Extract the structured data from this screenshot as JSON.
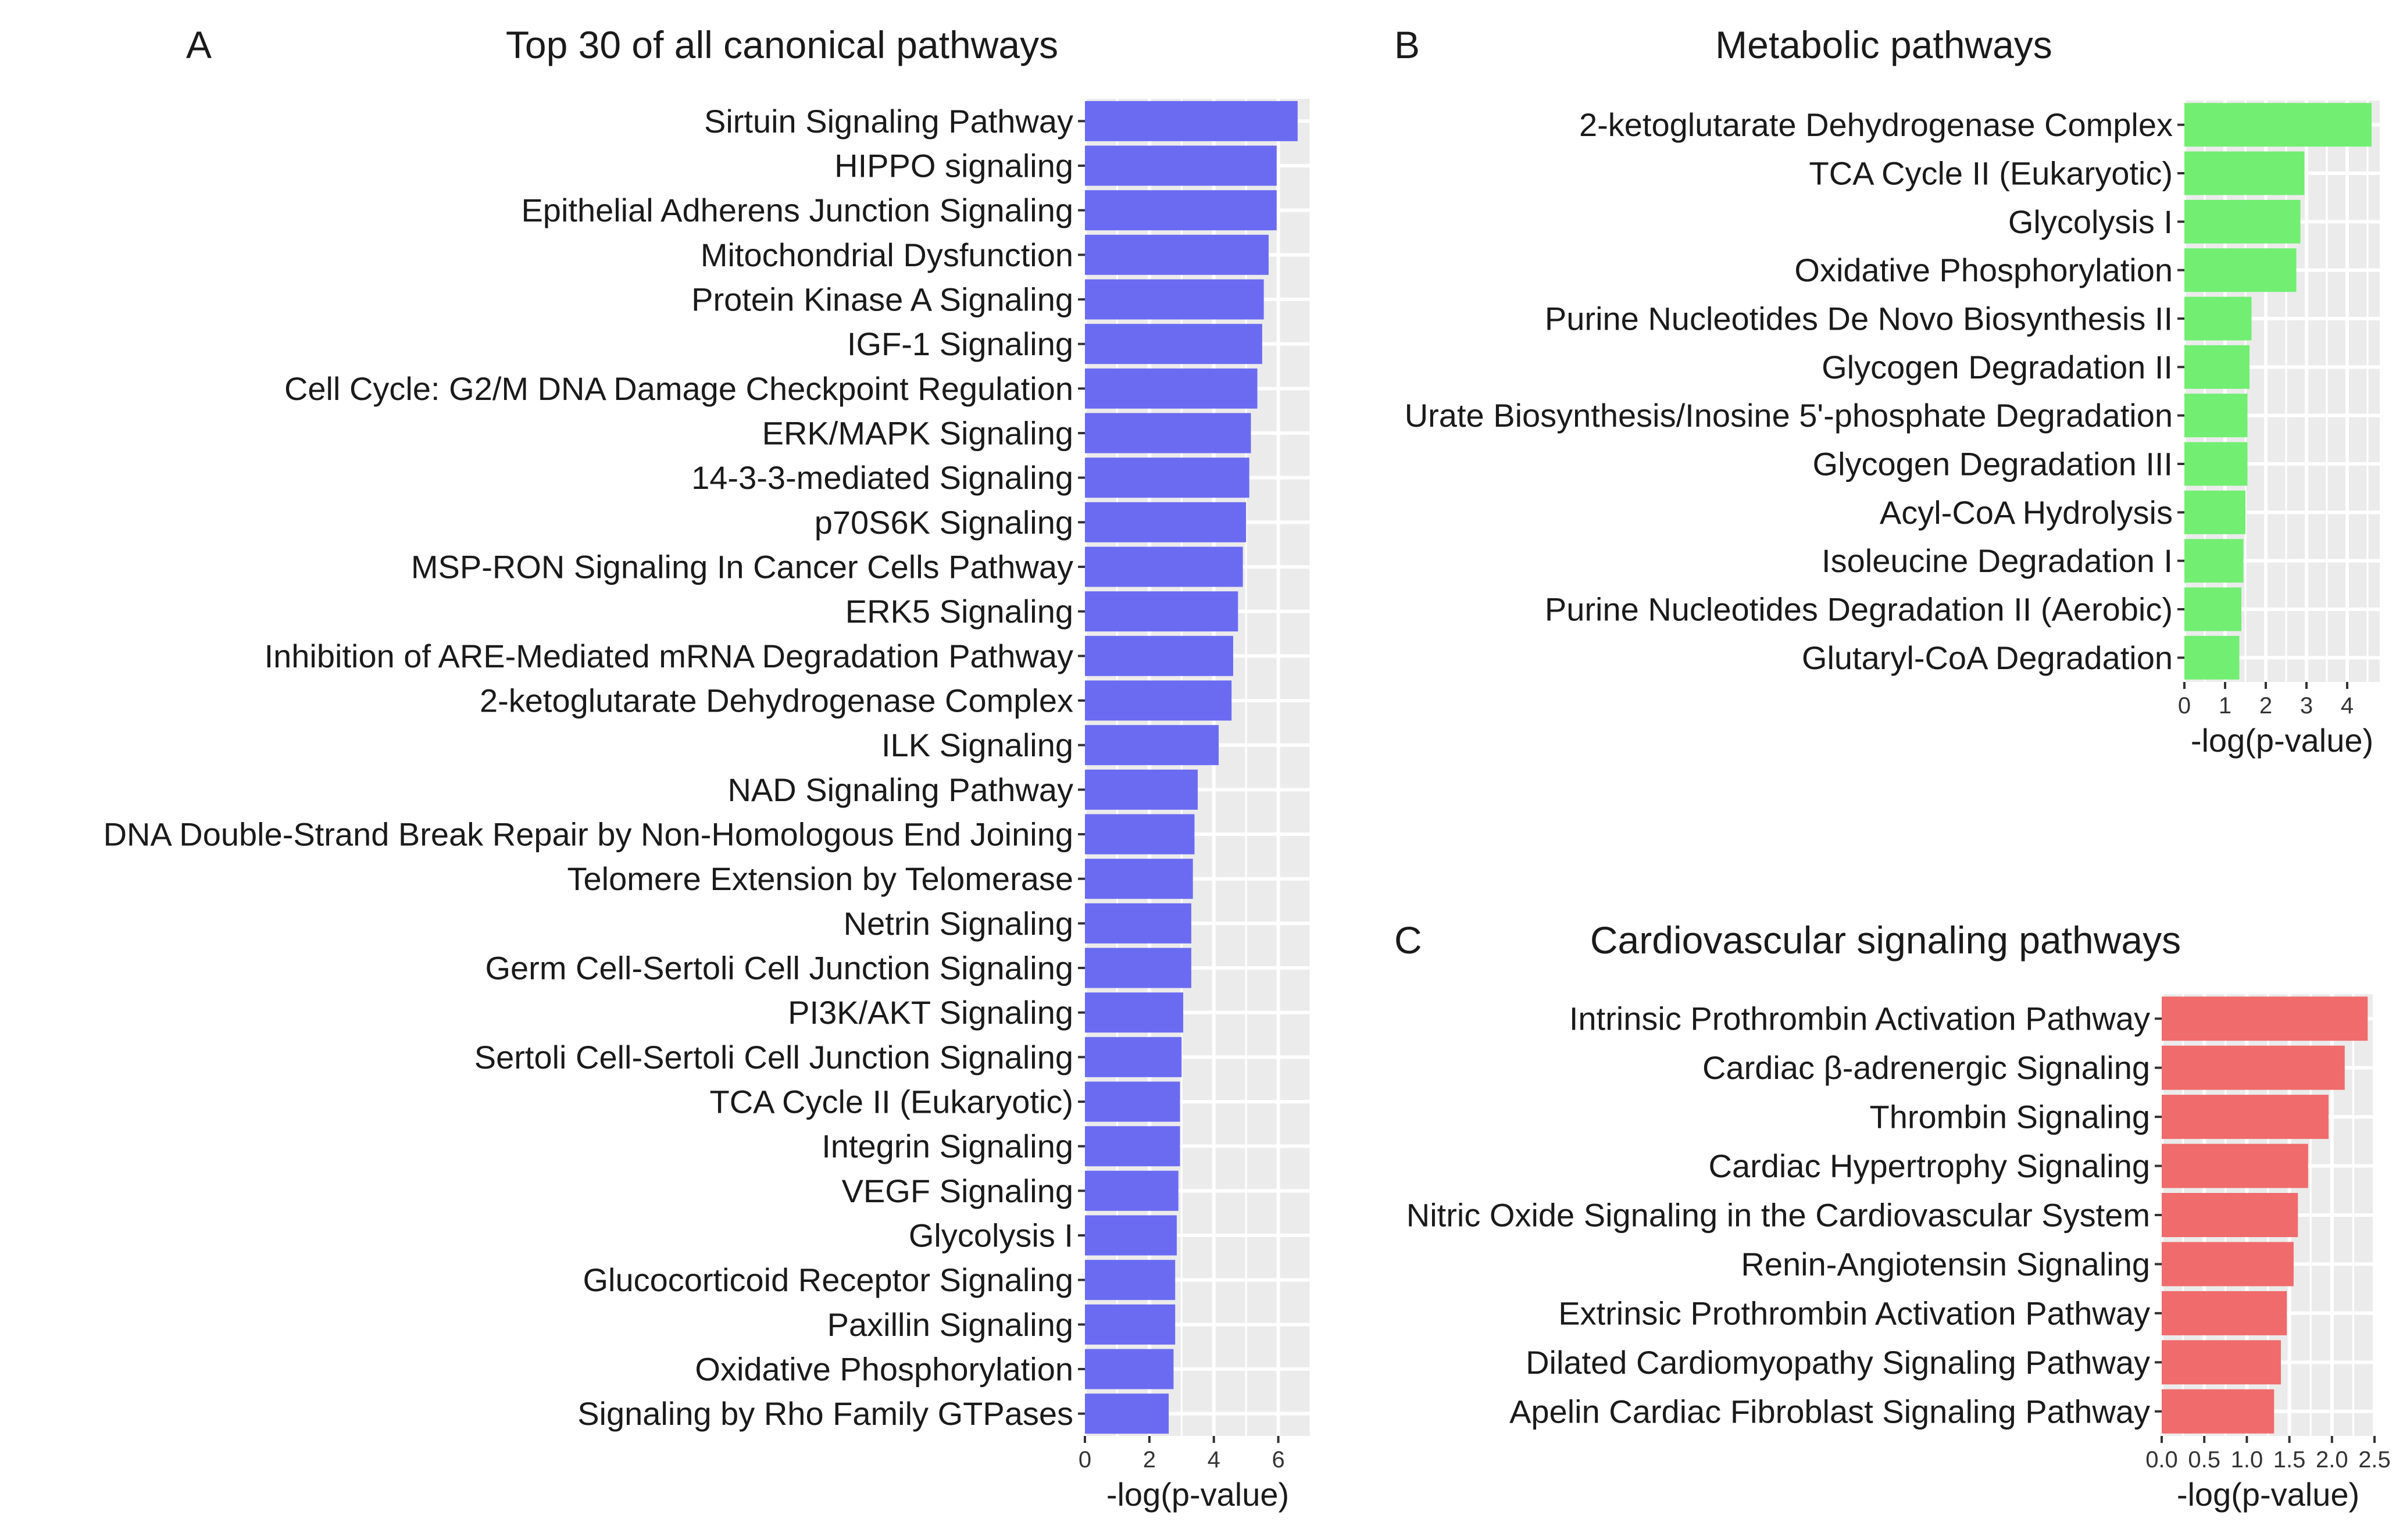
{
  "chart_data": [
    {
      "type": "bar",
      "orientation": "horizontal",
      "panel_label": "A",
      "title": "Top 30 of all canonical pathways",
      "xlabel": "-log(p-value)",
      "ylabel": "",
      "xlim": [
        0,
        7
      ],
      "x_ticks": [
        0,
        2,
        4,
        6
      ],
      "x_tick_labels": [
        "0",
        "2",
        "4",
        "6"
      ],
      "color": "#6b6bf2",
      "categories": [
        "Sirtuin Signaling Pathway",
        "HIPPO signaling",
        "Epithelial Adherens Junction Signaling",
        "Mitochondrial Dysfunction",
        "Protein Kinase A Signaling",
        "IGF-1 Signaling",
        "Cell Cycle: G2/M DNA Damage Checkpoint Regulation",
        "ERK/MAPK Signaling",
        "14-3-3-mediated Signaling",
        "p70S6K Signaling",
        "MSP-RON Signaling In Cancer Cells Pathway",
        "ERK5 Signaling",
        "Inhibition of ARE-Mediated mRNA Degradation Pathway",
        "2-ketoglutarate Dehydrogenase Complex",
        "ILK Signaling",
        "NAD Signaling Pathway",
        "DNA Double-Strand Break Repair by Non-Homologous End Joining",
        "Telomere Extension by Telomerase",
        "Netrin Signaling",
        "Germ Cell-Sertoli Cell Junction Signaling",
        "PI3K/AKT Signaling",
        "Sertoli Cell-Sertoli Cell Junction Signaling",
        "TCA Cycle II (Eukaryotic)",
        "Integrin Signaling",
        "VEGF Signaling",
        "Glycolysis I",
        "Glucocorticoid Receptor Signaling",
        "Paxillin Signaling",
        "Oxidative Phosphorylation",
        "Signaling by Rho Family GTPases"
      ],
      "values": [
        6.6,
        5.95,
        5.95,
        5.7,
        5.55,
        5.5,
        5.35,
        5.15,
        5.1,
        5.0,
        4.9,
        4.75,
        4.6,
        4.55,
        4.15,
        3.5,
        3.4,
        3.35,
        3.3,
        3.3,
        3.05,
        3.0,
        2.95,
        2.95,
        2.9,
        2.85,
        2.8,
        2.8,
        2.75,
        2.6
      ]
    },
    {
      "type": "bar",
      "orientation": "horizontal",
      "panel_label": "B",
      "title": "Metabolic pathways",
      "xlabel": "-log(p-value)",
      "ylabel": "",
      "xlim": [
        0,
        4.8
      ],
      "x_ticks": [
        0,
        1,
        2,
        3,
        4
      ],
      "x_tick_labels": [
        "0",
        "1",
        "2",
        "3",
        "4"
      ],
      "color": "#72ee72",
      "categories": [
        "2-ketoglutarate Dehydrogenase Complex",
        "TCA Cycle II (Eukaryotic)",
        "Glycolysis I",
        "Oxidative Phosphorylation",
        "Purine Nucleotides De Novo Biosynthesis II",
        "Glycogen Degradation II",
        "Urate Biosynthesis/Inosine 5'-phosphate Degradation",
        "Glycogen Degradation III",
        "Acyl-CoA Hydrolysis",
        "Isoleucine Degradation I",
        "Purine Nucleotides Degradation II (Aerobic)",
        "Glutaryl-CoA Degradation"
      ],
      "values": [
        4.6,
        2.95,
        2.85,
        2.75,
        1.65,
        1.6,
        1.55,
        1.55,
        1.5,
        1.45,
        1.4,
        1.35
      ]
    },
    {
      "type": "bar",
      "orientation": "horizontal",
      "panel_label": "C",
      "title": "Cardiovascular signaling pathways",
      "xlabel": "-log(p-value)",
      "ylabel": "",
      "xlim": [
        0,
        2.5
      ],
      "x_ticks": [
        0,
        0.5,
        1.0,
        1.5,
        2.0,
        2.5
      ],
      "x_tick_labels": [
        "0.0",
        "0.5",
        "1.0",
        "1.5",
        "2.0",
        "2.5"
      ],
      "color": "#f06b6b",
      "categories": [
        "Intrinsic Prothrombin Activation Pathway",
        "Cardiac β-adrenergic Signaling",
        "Thrombin Signaling",
        "Cardiac Hypertrophy Signaling",
        "Nitric Oxide Signaling in the Cardiovascular System",
        "Renin-Angiotensin Signaling",
        "Extrinsic Prothrombin Activation Pathway",
        "Dilated Cardiomyopathy Signaling Pathway",
        "Apelin Cardiac Fibroblast Signaling Pathway"
      ],
      "values": [
        2.42,
        2.15,
        1.96,
        1.72,
        1.6,
        1.55,
        1.47,
        1.4,
        1.32
      ]
    }
  ]
}
